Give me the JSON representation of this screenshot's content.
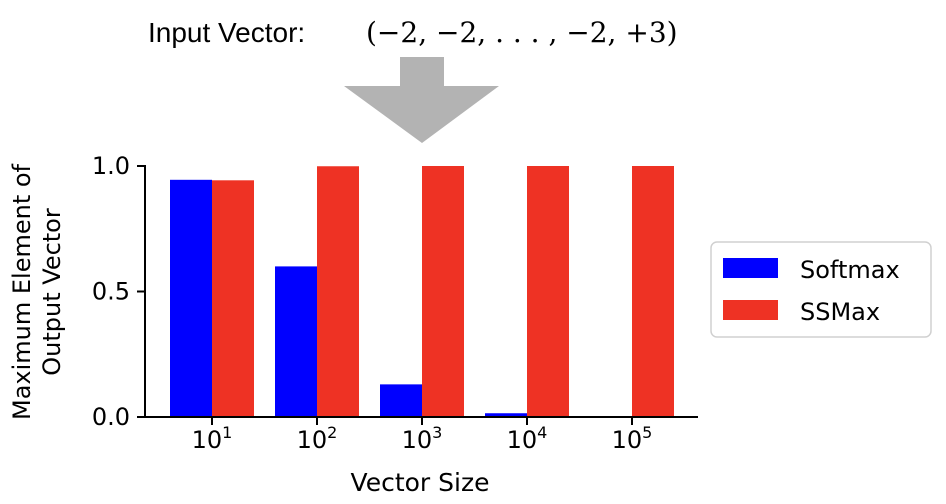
{
  "header": {
    "label": "Input Vector:",
    "formula": "(−2, −2, . . . , −2, +3)"
  },
  "chart_data": {
    "type": "bar",
    "categories": [
      "10",
      "10",
      "10",
      "10",
      "10"
    ],
    "category_exponents": [
      "1",
      "2",
      "3",
      "4",
      "5"
    ],
    "series": [
      {
        "name": "Softmax",
        "values": [
          0.945,
          0.6,
          0.13,
          0.015,
          0.0
        ],
        "color": "#0000ff"
      },
      {
        "name": "SSMax",
        "values": [
          0.943,
          0.999,
          1.0,
          1.0,
          1.0
        ],
        "color": "#ee3224"
      }
    ],
    "xlabel": "Vector Size",
    "ylabel_lines": [
      "Maximum Element of",
      "Output Vector"
    ],
    "ylim": [
      0,
      1.0
    ],
    "yticks": [
      "0.0",
      "0.5",
      "1.0"
    ],
    "legend": "right",
    "grid": false
  },
  "colors": {
    "arrow": "#b3b3b3",
    "axis": "#000000"
  }
}
